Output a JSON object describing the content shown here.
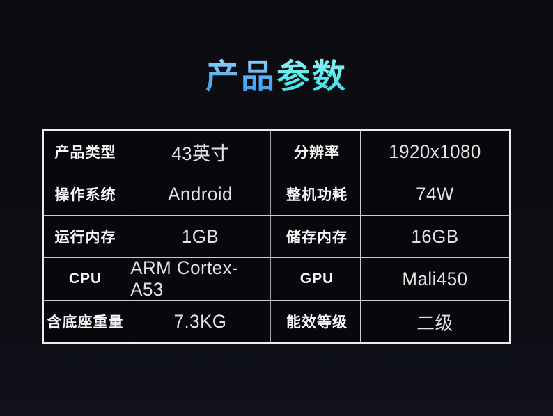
{
  "header": {
    "title_part1": "产品",
    "title_part2": "参数"
  },
  "colors": {
    "title_blue": "#58aef3",
    "title_cyan": "#55e8ef",
    "page_background": "#0d0e13",
    "table_border": "#ededed",
    "inner_border": "#c9c9c9",
    "cell_background": "#07080b",
    "label_text": "#f7f7f7",
    "value_text": "#e3e3e3"
  },
  "spec_table": {
    "rows": [
      {
        "label1": "产品类型",
        "value1": "43英寸",
        "label2": "分辨率",
        "value2": "1920x1080"
      },
      {
        "label1": "操作系统",
        "value1": "Android",
        "label2": "整机功耗",
        "value2": "74W"
      },
      {
        "label1": "运行内存",
        "value1": "1GB",
        "label2": "储存内存",
        "value2": "16GB"
      },
      {
        "label1": "CPU",
        "value1": "ARM Cortex-A53",
        "label2": "GPU",
        "value2": "Mali450"
      },
      {
        "label1": "含底座重量",
        "value1": "7.3KG",
        "label2": "能效等级",
        "value2": "二级"
      }
    ]
  }
}
